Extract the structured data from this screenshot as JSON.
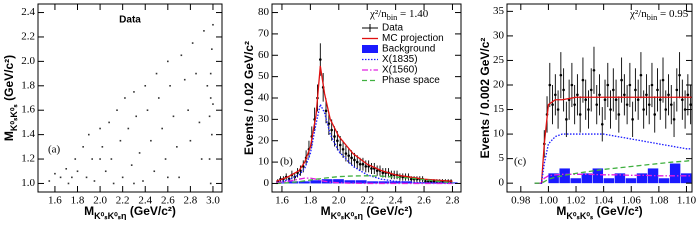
{
  "chart_data": [
    {
      "type": "scatter",
      "panel_label": "(a)",
      "note": "Data",
      "color": "#333333",
      "xlabel": {
        "main": "M",
        "sub": "K⁰ₛK⁰ₛη",
        "unit": " (GeV/c²)"
      },
      "ylabel": {
        "main": "M",
        "sub": "K⁰ₛK⁰ₛ",
        "unit": " (GeV/c²)"
      },
      "xlim": [
        1.45,
        3.08
      ],
      "ylim": [
        0.93,
        2.47
      ],
      "xticks": [
        1.6,
        1.8,
        {
          "value": 2,
          "label": "2.0"
        },
        2.2,
        2.4,
        2.6,
        2.8,
        {
          "value": 3,
          "label": "3.0"
        }
      ],
      "yticks": [
        {
          "value": 1,
          "label": "1.0"
        },
        1.2,
        1.4,
        1.6,
        1.8,
        {
          "value": 2,
          "label": "2.0"
        },
        2.2,
        2.4
      ],
      "x": [
        1.55,
        1.6,
        1.65,
        1.7,
        1.72,
        1.78,
        1.8,
        1.85,
        1.88,
        1.9,
        1.93,
        1.95,
        2.0,
        2.02,
        2.05,
        2.08,
        2.1,
        2.12,
        2.15,
        2.18,
        2.2,
        2.22,
        2.25,
        2.28,
        2.3,
        2.32,
        2.35,
        2.38,
        2.4,
        2.42,
        2.45,
        2.48,
        2.5,
        2.52,
        2.55,
        2.58,
        2.6,
        2.62,
        2.65,
        2.68,
        2.7,
        2.72,
        2.75,
        2.78,
        2.8,
        2.82,
        2.85,
        2.88,
        2.9,
        2.92,
        2.95,
        2.97,
        2.98,
        2.98,
        2.99,
        2.99,
        3.0,
        3.0,
        2.97,
        2.98,
        2.6,
        2.3,
        2.0,
        1.75
      ],
      "values": [
        1.02,
        1.08,
        1.05,
        1.12,
        1.0,
        1.2,
        1.1,
        1.3,
        1.05,
        1.4,
        1.2,
        1.02,
        1.45,
        1.3,
        1.1,
        1.5,
        1.2,
        1.0,
        1.6,
        1.35,
        1.05,
        1.7,
        1.45,
        1.15,
        1.75,
        1.55,
        1.25,
        1.02,
        1.8,
        1.6,
        1.35,
        1.1,
        1.9,
        1.7,
        1.45,
        1.2,
        2.0,
        1.8,
        1.55,
        1.3,
        1.05,
        2.05,
        1.85,
        1.6,
        1.35,
        2.15,
        1.9,
        1.5,
        1.2,
        2.25,
        1.8,
        1.55,
        1.7,
        1.9,
        2.1,
        1.4,
        2.3,
        1.65,
        1.2,
        1.0,
        1.05,
        1.0,
        1.2,
        1.05
      ]
    },
    {
      "type": "histogram",
      "panel_label": "(b)",
      "legend": "upper right",
      "chi2": {
        "pre": "χ²/n",
        "sub": "bin",
        "post": " = 1.40"
      },
      "xlabel": {
        "main": "M",
        "sub": "K⁰ₛK⁰ₛη",
        "unit": " (GeV/c²)"
      },
      "ylabel": {
        "main": "Events / 0.02 GeV/c²"
      },
      "xlim": [
        1.53,
        2.86
      ],
      "ylim": [
        -4,
        84
      ],
      "xticks": [
        1.6,
        1.8,
        {
          "value": 2,
          "label": "2.0"
        },
        2.2,
        2.4,
        2.6,
        2.8
      ],
      "yticks": [
        0,
        10,
        20,
        30,
        40,
        50,
        60,
        70,
        80
      ],
      "series": [
        {
          "name": "Data",
          "kind": "points",
          "color": "#000000",
          "x": [
            1.57,
            1.59,
            1.61,
            1.63,
            1.65,
            1.67,
            1.69,
            1.71,
            1.73,
            1.75,
            1.77,
            1.79,
            1.81,
            1.83,
            1.85,
            1.87,
            1.89,
            1.91,
            1.93,
            1.95,
            1.97,
            1.99,
            2.01,
            2.03,
            2.05,
            2.07,
            2.09,
            2.11,
            2.13,
            2.15,
            2.17,
            2.19,
            2.21,
            2.23,
            2.25,
            2.27,
            2.29,
            2.31,
            2.33,
            2.35,
            2.37,
            2.39,
            2.41,
            2.43,
            2.45,
            2.47,
            2.49,
            2.51,
            2.53,
            2.55,
            2.57,
            2.59,
            2.61,
            2.63,
            2.65,
            2.67,
            2.69,
            2.71,
            2.73,
            2.75,
            2.77,
            2.79
          ],
          "values": [
            1,
            2,
            2,
            3,
            2,
            4,
            3,
            5,
            6,
            8,
            12,
            16,
            22,
            30,
            40,
            58,
            45,
            34,
            28,
            25,
            22,
            20,
            18,
            16,
            14,
            13,
            12,
            11,
            10,
            9,
            9,
            8,
            8,
            7,
            7,
            6,
            6,
            5,
            5,
            5,
            4,
            4,
            4,
            3,
            3,
            3,
            3,
            2,
            2,
            2,
            2,
            2,
            1,
            1,
            1,
            1,
            1,
            1,
            1,
            1,
            1,
            1
          ],
          "errors": [
            1,
            1.4,
            1.4,
            1.7,
            1.4,
            2,
            1.7,
            2.2,
            2.4,
            2.8,
            3.5,
            4,
            4.7,
            5.5,
            6.3,
            7.6,
            6.7,
            5.8,
            5.3,
            5,
            4.7,
            4.5,
            4.2,
            4,
            3.7,
            3.6,
            3.5,
            3.3,
            3.2,
            3,
            3,
            2.8,
            2.8,
            2.6,
            2.6,
            2.4,
            2.4,
            2.2,
            2.2,
            2.2,
            2,
            2,
            2,
            1.7,
            1.7,
            1.7,
            1.7,
            1.4,
            1.4,
            1.4,
            1.4,
            1.4,
            1,
            1,
            1,
            1,
            1,
            1,
            1,
            1,
            1,
            1
          ]
        },
        {
          "name": "MC projection",
          "kind": "line",
          "color": "#e01010",
          "dash": "solid",
          "x": [
            1.56,
            1.64,
            1.72,
            1.76,
            1.8,
            1.84,
            1.87,
            1.9,
            1.94,
            2.0,
            2.1,
            2.2,
            2.3,
            2.4,
            2.5,
            2.6,
            2.7,
            2.8
          ],
          "values": [
            1,
            3,
            6,
            10,
            17,
            32,
            55,
            42,
            30,
            22,
            14,
            9,
            6,
            4,
            3,
            2,
            1.5,
            1
          ]
        },
        {
          "name": "Background",
          "kind": "bars",
          "color": "#1a1aff",
          "bins": [
            1.56,
            1.64,
            1.72,
            1.8,
            1.88,
            1.96,
            2.04,
            2.12,
            2.2,
            2.28,
            2.36,
            2.44,
            2.52,
            2.6,
            2.68,
            2.76,
            2.84
          ],
          "values": [
            0.5,
            1,
            1,
            1.5,
            2,
            2,
            1.5,
            1.5,
            1,
            1,
            1,
            1,
            0.5,
            0.5,
            0.5,
            0.5
          ]
        },
        {
          "name": "X(1835)",
          "kind": "line",
          "color": "#1a1aff",
          "dash": "dotted",
          "x": [
            1.56,
            1.64,
            1.72,
            1.76,
            1.8,
            1.84,
            1.87,
            1.9,
            1.94,
            2.0,
            2.1,
            2.2,
            2.3,
            2.4,
            2.5,
            2.6,
            2.7,
            2.8
          ],
          "values": [
            0.5,
            1.5,
            4,
            7,
            14,
            28,
            37,
            33,
            23,
            15,
            8,
            4,
            2,
            1,
            0.5,
            0.3,
            0.2,
            0.1
          ]
        },
        {
          "name": "X(1560)",
          "kind": "line",
          "color": "#e020e0",
          "dash": "dashdot",
          "x": [
            1.56,
            1.64,
            1.72,
            1.76,
            1.8,
            1.84,
            1.87,
            1.9,
            1.94,
            2.0,
            2.1,
            2.2,
            2.3,
            2.4,
            2.5,
            2.6,
            2.7,
            2.8
          ],
          "values": [
            0.3,
            1,
            2,
            2.5,
            2.5,
            2,
            1.5,
            1,
            0.6,
            0.3,
            0.1,
            0,
            0,
            0,
            0,
            0,
            0,
            0
          ]
        },
        {
          "name": "Phase space",
          "kind": "line",
          "color": "#40b040",
          "dash": "dashed",
          "x": [
            1.56,
            1.64,
            1.72,
            1.76,
            1.8,
            1.84,
            1.87,
            1.9,
            1.94,
            2.0,
            2.1,
            2.2,
            2.3,
            2.4,
            2.5,
            2.6,
            2.7,
            2.8
          ],
          "values": [
            0,
            0.3,
            0.8,
            1.2,
            1.6,
            2,
            2.2,
            2.5,
            2.8,
            3.2,
            3.5,
            3.6,
            3.4,
            3,
            2.5,
            1.8,
            1,
            0.3
          ]
        }
      ]
    },
    {
      "type": "histogram",
      "panel_label": "(c)",
      "chi2": {
        "pre": "χ²/n",
        "sub": "bin",
        "post": " = 0.95"
      },
      "xlabel": {
        "main": "M",
        "sub": "K⁰ₛK⁰ₛ",
        "unit": " (GeV/c²)"
      },
      "ylabel": {
        "main": "Events / 0.002 GeV/c²"
      },
      "xlim": [
        0.97,
        1.104
      ],
      "ylim": [
        -1.8,
        36.5
      ],
      "xticks": [
        0.98,
        {
          "value": 1,
          "label": "1.00"
        },
        1.02,
        1.04,
        1.06,
        1.08,
        {
          "value": 1.1,
          "label": "1.10"
        }
      ],
      "yticks": [
        0,
        5,
        10,
        15,
        20,
        25,
        30,
        35
      ],
      "series": [
        {
          "kind": "points",
          "color": "#000000",
          "x": [
            0.997,
            0.999,
            1.001,
            1.003,
            1.005,
            1.007,
            1.009,
            1.011,
            1.013,
            1.015,
            1.017,
            1.019,
            1.021,
            1.023,
            1.025,
            1.027,
            1.029,
            1.031,
            1.033,
            1.035,
            1.037,
            1.039,
            1.041,
            1.043,
            1.045,
            1.047,
            1.049,
            1.051,
            1.053,
            1.055,
            1.057,
            1.059,
            1.061,
            1.063,
            1.065,
            1.067,
            1.069,
            1.071,
            1.073,
            1.075,
            1.077,
            1.079,
            1.081,
            1.083,
            1.085,
            1.087,
            1.089,
            1.091,
            1.093,
            1.095,
            1.097,
            1.099,
            1.101,
            1.103
          ],
          "values": [
            8,
            14,
            20,
            16,
            18,
            15,
            22,
            19,
            13,
            17,
            20,
            16,
            18,
            14,
            21,
            17,
            15,
            19,
            23,
            16,
            18,
            12,
            17,
            20,
            15,
            19,
            17,
            14,
            21,
            18,
            16,
            20,
            13,
            19,
            17,
            22,
            15,
            18,
            16,
            20,
            14,
            19,
            17,
            21,
            15,
            18,
            16,
            13,
            19,
            22,
            17,
            15,
            18,
            16
          ],
          "errors": [
            2.8,
            3.7,
            4.5,
            4,
            4.2,
            3.9,
            4.7,
            4.4,
            3.6,
            4.1,
            4.5,
            4,
            4.2,
            3.7,
            4.6,
            4.1,
            3.9,
            4.4,
            4.8,
            4,
            4.2,
            3.5,
            4.1,
            4.5,
            3.9,
            4.4,
            4.1,
            3.7,
            4.6,
            4.2,
            4,
            4.5,
            3.6,
            4.4,
            4.1,
            4.7,
            3.9,
            4.2,
            4,
            4.5,
            3.7,
            4.4,
            4.1,
            4.6,
            3.9,
            4.2,
            4,
            3.6,
            4.4,
            4.7,
            4.1,
            3.9,
            4.2,
            4
          ]
        },
        {
          "kind": "line",
          "color": "#e01010",
          "dash": "solid",
          "x": [
            0.99,
            0.995,
            0.997,
            1.0,
            1.005,
            1.01,
            1.02,
            1.03,
            1.04,
            1.05,
            1.06,
            1.07,
            1.08,
            1.09,
            1.1,
            1.105
          ],
          "values": [
            0,
            0,
            8,
            16,
            17,
            17,
            17.5,
            17.5,
            17.5,
            17.5,
            17.5,
            17.5,
            17.5,
            17.5,
            17.5,
            17.5
          ]
        },
        {
          "kind": "bars",
          "color": "#1a1aff",
          "bins": [
            1.0,
            1.008,
            1.016,
            1.024,
            1.032,
            1.04,
            1.048,
            1.056,
            1.064,
            1.072,
            1.08,
            1.088,
            1.096,
            1.104
          ],
          "values": [
            2,
            3,
            1,
            2,
            3,
            1,
            2,
            1,
            2,
            3,
            1,
            4,
            2
          ]
        },
        {
          "kind": "line",
          "color": "#1a1aff",
          "dash": "dotted",
          "x": [
            0.99,
            0.995,
            0.997,
            1.0,
            1.005,
            1.01,
            1.02,
            1.03,
            1.04,
            1.05,
            1.06,
            1.07,
            1.08,
            1.09,
            1.1,
            1.105
          ],
          "values": [
            0,
            0,
            4,
            8,
            9.5,
            10,
            10,
            10,
            10,
            9.5,
            9,
            8.5,
            8,
            7.5,
            7,
            7
          ]
        },
        {
          "kind": "line",
          "color": "#e020e0",
          "dash": "dashdot",
          "x": [
            0.99,
            0.995,
            0.997,
            1.0,
            1.005,
            1.01,
            1.02,
            1.03,
            1.04,
            1.05,
            1.06,
            1.07,
            1.08,
            1.09,
            1.1,
            1.105
          ],
          "values": [
            0,
            0,
            1,
            1.5,
            1.7,
            1.8,
            1.8,
            1.8,
            1.7,
            1.7,
            1.6,
            1.6,
            1.5,
            1.5,
            1.5,
            1.5
          ]
        },
        {
          "kind": "line",
          "color": "#40b040",
          "dash": "dashed",
          "x": [
            0.99,
            0.995,
            0.997,
            1.0,
            1.005,
            1.01,
            1.02,
            1.03,
            1.04,
            1.05,
            1.06,
            1.07,
            1.08,
            1.09,
            1.1,
            1.105
          ],
          "values": [
            0,
            0,
            0.3,
            0.8,
            1.2,
            1.5,
            2,
            2.4,
            2.8,
            3.1,
            3.4,
            3.7,
            4,
            4.3,
            4.5,
            4.7
          ]
        }
      ]
    }
  ]
}
